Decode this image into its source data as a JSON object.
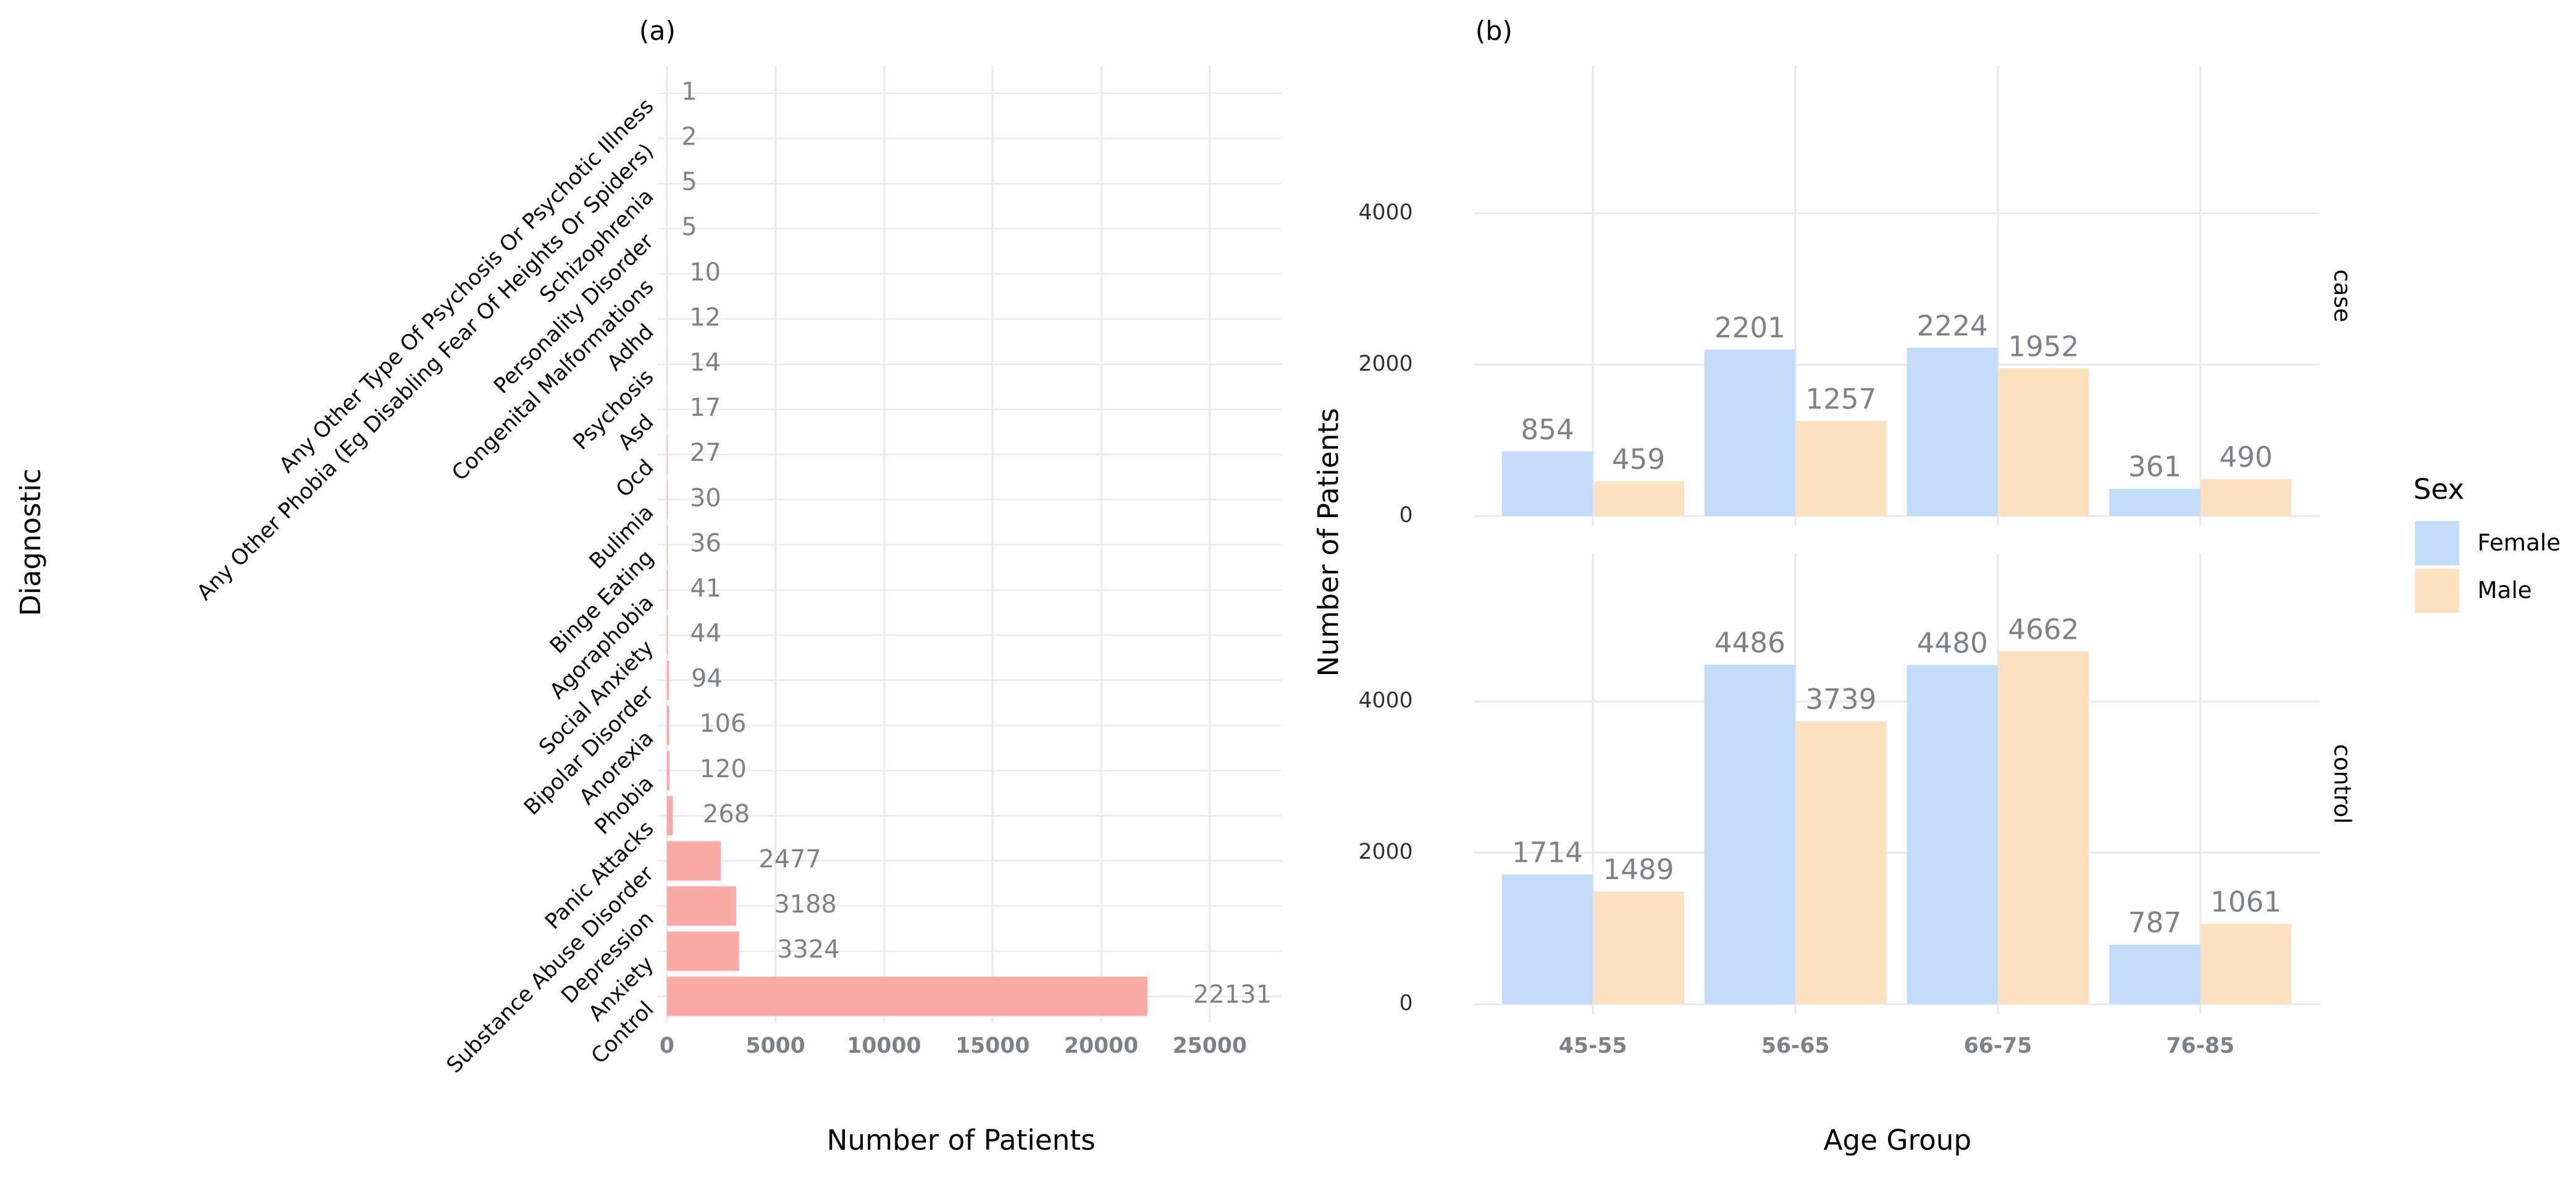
{
  "chart_data": [
    {
      "type": "bar",
      "orientation": "horizontal",
      "title": "(a)",
      "x_label": "Number of Patients",
      "y_label": "Diagnostic",
      "categories": [
        "Any Other Type Of Psychosis Or Psychotic Illness",
        "Any Other Phobia (Eg Disabling Fear Of Heights Or Spiders)",
        "Schizophrenia",
        "Personality Disorder",
        "Congenital Malformations",
        "Adhd",
        "Psychosis",
        "Asd",
        "Ocd",
        "Bulimia",
        "Binge Eating",
        "Agoraphobia",
        "Social Anxiety",
        "Bipolar Disorder",
        "Anorexia",
        "Phobia",
        "Panic Attacks",
        "Substance Abuse Disorder",
        "Depression",
        "Anxiety",
        "Control"
      ],
      "values": [
        1,
        2,
        5,
        5,
        10,
        12,
        14,
        17,
        27,
        30,
        36,
        41,
        44,
        94,
        106,
        120,
        268,
        2477,
        3188,
        3324,
        22131
      ],
      "color": "#fbaaa5",
      "xlim": [
        -450,
        28300
      ],
      "xticks": [
        0,
        5000,
        10000,
        15000,
        20000,
        25000
      ],
      "grid": true
    },
    {
      "type": "grouped_bar",
      "title": "(b)",
      "x_label": "Age Group",
      "y_label": "Number of Patients",
      "categories": [
        "45-55",
        "56-65",
        "66-75",
        "76-85"
      ],
      "facets": [
        "case",
        "control"
      ],
      "series": [
        {
          "name": "Female",
          "color": "#c2dcfa",
          "values": [
            [
              854,
              2201,
              2224,
              361
            ],
            [
              1714,
              4486,
              4480,
              787
            ]
          ]
        },
        {
          "name": "Male",
          "color": "#fde2c2",
          "values": [
            [
              459,
              1257,
              1952,
              490
            ],
            [
              1489,
              3739,
              4662,
              1061
            ]
          ]
        }
      ],
      "ylim": [
        -130,
        5950
      ],
      "yticks": [
        0,
        2000,
        4000
      ],
      "legend_title": "Sex",
      "legend_position": "right",
      "grid": true
    }
  ]
}
